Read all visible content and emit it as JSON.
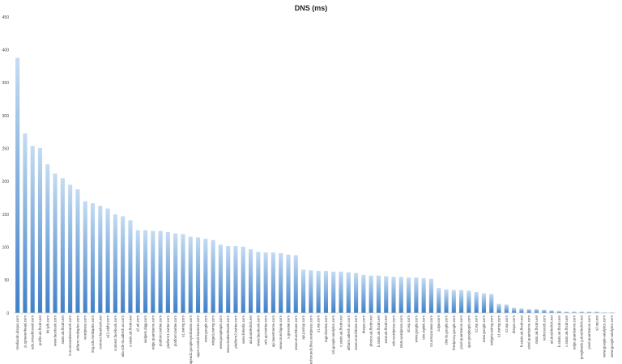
{
  "chart_data": {
    "type": "bar",
    "title": "DNS (ms)",
    "xlabel": "",
    "ylabel": "",
    "ylim": [
      0,
      450
    ],
    "yticks": [
      0,
      50,
      100,
      150,
      200,
      250,
      300,
      350,
      400,
      450
    ],
    "grid": false,
    "legend": "none",
    "bar_color_top": "#c5dcf2",
    "bar_color_bottom": "#3f80c8",
    "categories": [
      "mediacdn.disqus.com",
      "js.spreeenhead.com",
      "ads.smashboard.com",
      "profile.ak.fbcdn.net",
      "bit.ly/b.com",
      "www.facebook.com",
      "static.ak.fbcdn.net",
      "b.scorecardresearch.com",
      "altfarm.mediaplex.com",
      "wordpress.com",
      "img.cdn.mediaplex.com",
      "connect.facebook.net",
      "a11.alphy.com",
      "connect.facebook.com",
      "aka-cdn-ns.adtech.us.com",
      "s-static.ak.fbcdn.net",
      "s2.ak.com",
      "widgets.digg.com",
      "edge.quantserve.com",
      "platform.twitter.com",
      "platform1.twitter.com",
      "platform.twitter.com",
      "s1.twimg.com",
      "pagead2.googlesyndication.com",
      "apps.conduit-banners.com",
      "www.google.com",
      "widgets.twimg.com",
      "www.googleapis.com",
      "www.readwriteweb.com",
      "platform2.twitter.com",
      "www.linkedin.com",
      "ad.doubleclick.net",
      "www.facebook.com",
      "urls.api.twitter.com",
      "api.tweetmeme.com",
      "www.crunchgear.com",
      "s.gravatar.com",
      "www.crunchbase.com",
      "api.postup.com",
      "techcrunch.files.wordpress.com",
      "s1.wp.com",
      "tags.bluekai.com",
      "ssl.google-analytics.com",
      "c.static.ak.fbcdn.net",
      "altfarm.adtech.us.com",
      "www.crunchbase.com",
      "disqus.com",
      "photos.ak.fbcdn.net",
      "b.static.ak.fbcdn.net",
      "www.ak.fbcdn.net",
      "cdn.wordpress.com",
      "stats.wordpress.com",
      "s0.wp.com",
      "www.google.com",
      "cdn.viglink.com",
      "s3.amazonaws.com",
      "a.tgw.com",
      "clients.google.com",
      "feedproxy.google.com",
      "pixel.quantserve.com",
      "ajax.googleapis.com",
      "s2.wp.com",
      "www.google.com",
      "widgets.twimg.com",
      "s1.twimg.com",
      "s2.wp.com",
      "disqus.com",
      "fr.static.ak.fbcdn.net",
      "pixel.quantserve.com",
      "static.ak.fbcdn.net",
      "techcrunch.com",
      "ad.doubleclick.net",
      "b.static.ak.fbcdn.net",
      "c.static.ak.fbcdn.net",
      "edge.quantserve.com",
      "googleads.g.doubleclick.net",
      "pixel.quantserve.com",
      "s2.wp.net",
      "www.google-analytics.com",
      "www.google-analytics.com"
    ],
    "values": [
      388,
      273,
      254,
      251,
      226,
      212,
      205,
      195,
      188,
      170,
      167,
      163,
      159,
      150,
      147,
      141,
      126,
      126,
      125,
      125,
      123,
      121,
      120,
      116,
      115,
      113,
      111,
      104,
      102,
      102,
      101,
      97,
      93,
      92,
      92,
      91,
      89,
      88,
      66,
      65,
      64,
      64,
      63,
      63,
      62,
      61,
      58,
      57,
      57,
      56,
      55,
      55,
      54,
      54,
      53,
      52,
      38,
      36,
      35,
      35,
      34,
      32,
      30,
      29,
      14,
      13,
      8,
      7,
      6,
      6,
      5,
      4,
      3,
      2,
      2,
      2,
      2,
      2,
      1,
      1
    ]
  }
}
